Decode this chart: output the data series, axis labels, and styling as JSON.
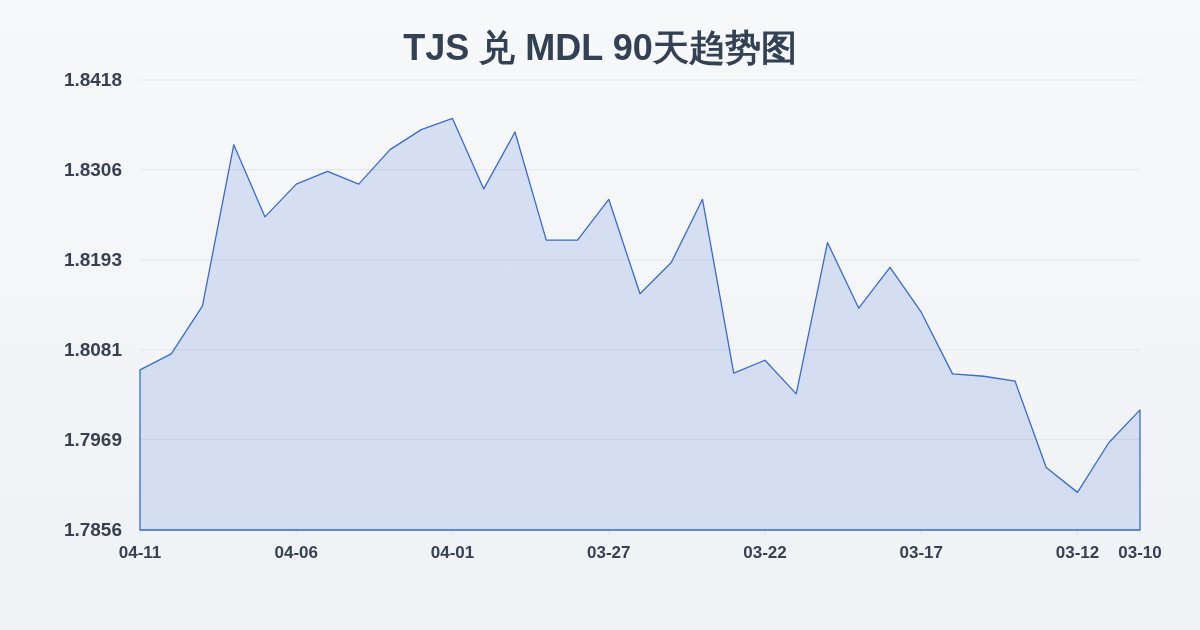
{
  "chart_data": {
    "type": "area",
    "title": "TJS 兑 MDL 90天趋势图",
    "categories": [
      "04-11",
      null,
      null,
      null,
      null,
      "04-06",
      null,
      null,
      null,
      null,
      "04-01",
      null,
      null,
      null,
      null,
      "03-27",
      null,
      null,
      null,
      null,
      "03-22",
      null,
      null,
      null,
      null,
      "03-17",
      null,
      null,
      null,
      null,
      "03-12",
      null,
      "03-10"
    ],
    "series": [
      {
        "color": "#3a6bd0",
        "values": [
          1.8056,
          1.8076,
          1.8136,
          1.8337,
          1.8247,
          1.8288,
          1.8304,
          1.8288,
          1.8331,
          1.8356,
          1.837,
          1.8282,
          1.8353,
          1.8218,
          1.8218,
          1.8269,
          1.8151,
          1.819,
          1.8269,
          1.8052,
          1.8068,
          1.8026,
          1.8215,
          1.8133,
          1.8184,
          1.8128,
          1.8051,
          1.8048,
          1.8042,
          1.7934,
          1.7903,
          1.7965,
          1.8006
        ]
      }
    ],
    "ylim": [
      1.7856,
      1.8418
    ],
    "yticks": [
      1.7856,
      1.7969,
      1.8081,
      1.8193,
      1.8306,
      1.8418
    ],
    "grid": "y"
  }
}
